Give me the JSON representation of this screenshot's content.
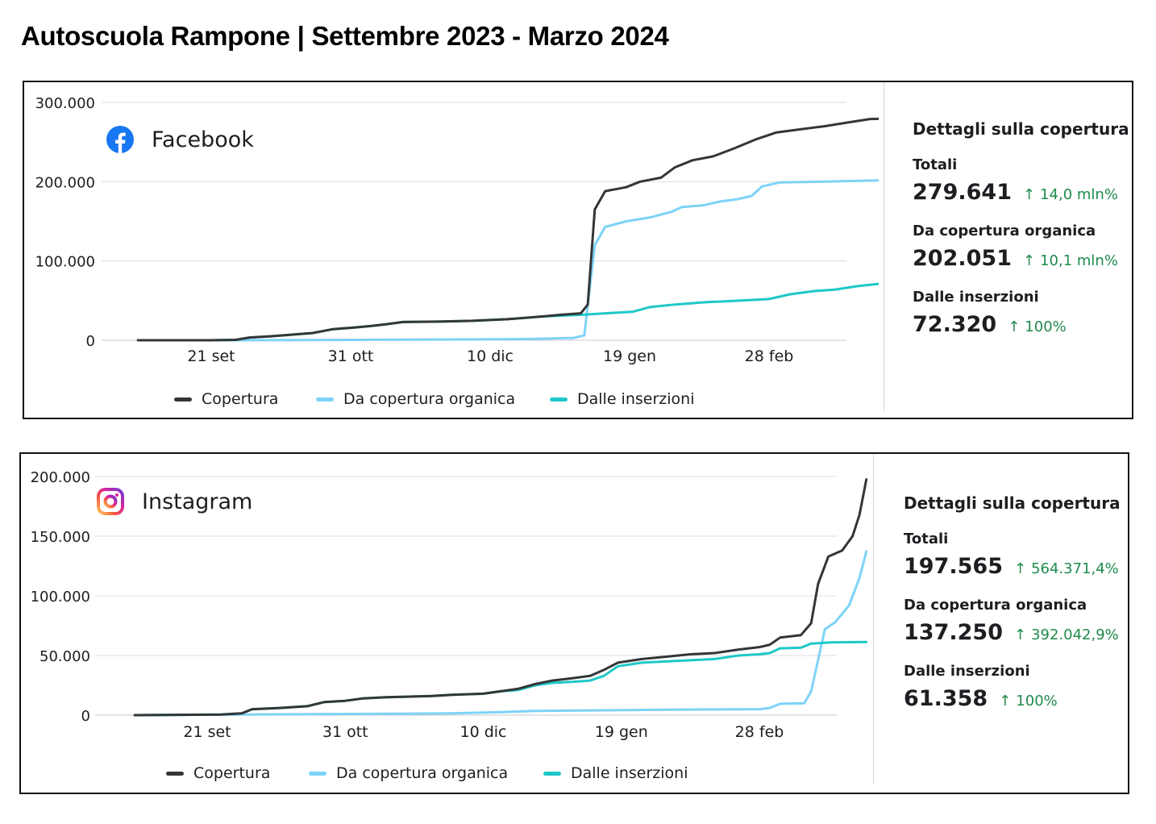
{
  "title": "Autoscuola Rampone | Settembre 2023 - Marzo 2024",
  "colors": {
    "copertura": "#333638",
    "organica": "#7dd3f7",
    "inserzioni": "#1fc8c8",
    "positive": "#1f8a4c",
    "gridline": "#dadde1",
    "facebook_brand": "#1877f2"
  },
  "legend": [
    "Copertura",
    "Da copertura organica",
    "Dalle inserzioni"
  ],
  "panels": {
    "facebook": {
      "platform": "Facebook",
      "icon": "facebook-icon",
      "details": {
        "title": "Dettagli sulla copertura",
        "items": [
          {
            "label": "Totali",
            "value": "279.641",
            "change": "14,0 mln%"
          },
          {
            "label": "Da copertura organica",
            "value": "202.051",
            "change": "10,1 mln%"
          },
          {
            "label": "Dalle inserzioni",
            "value": "72.320",
            "change": "100%"
          }
        ]
      }
    },
    "instagram": {
      "platform": "Instagram",
      "icon": "instagram-icon",
      "details": {
        "title": "Dettagli sulla copertura",
        "items": [
          {
            "label": "Totali",
            "value": "197.565",
            "change": "564.371,4%"
          },
          {
            "label": "Da copertura organica",
            "value": "137.250",
            "change": "392.042,9%"
          },
          {
            "label": "Dalle inserzioni",
            "value": "61.358",
            "change": "100%"
          }
        ]
      }
    }
  },
  "chart_data": [
    {
      "type": "line",
      "platform": "Facebook",
      "x_tick_labels": [
        "21 set",
        "31 ott",
        "10 dic",
        "19 gen",
        "28 feb"
      ],
      "y_tick_labels": [
        "0",
        "100.000",
        "200.000",
        "300.000"
      ],
      "ylim": [
        0,
        300000
      ],
      "grid": true,
      "legend_position": "bottom",
      "series": [
        {
          "name": "Copertura",
          "points": [
            [
              "2023-08-31",
              0
            ],
            [
              "2023-09-21",
              0
            ],
            [
              "2023-09-28",
              500
            ],
            [
              "2023-10-02",
              3500
            ],
            [
              "2023-10-08",
              5000
            ],
            [
              "2023-10-14",
              7000
            ],
            [
              "2023-10-20",
              9000
            ],
            [
              "2023-10-26",
              14000
            ],
            [
              "2023-11-01",
              16000
            ],
            [
              "2023-11-06",
              18000
            ],
            [
              "2023-11-10",
              20000
            ],
            [
              "2023-11-15",
              23000
            ],
            [
              "2023-11-25",
              23500
            ],
            [
              "2023-12-05",
              24500
            ],
            [
              "2023-12-15",
              26500
            ],
            [
              "2023-12-25",
              30000
            ],
            [
              "2023-12-30",
              32000
            ],
            [
              "2024-01-05",
              34000
            ],
            [
              "2024-01-07",
              45000
            ],
            [
              "2024-01-09",
              165000
            ],
            [
              "2024-01-12",
              188000
            ],
            [
              "2024-01-18",
              193000
            ],
            [
              "2024-01-22",
              200000
            ],
            [
              "2024-01-28",
              205000
            ],
            [
              "2024-02-01",
              218000
            ],
            [
              "2024-02-06",
              227000
            ],
            [
              "2024-02-12",
              232000
            ],
            [
              "2024-02-18",
              242000
            ],
            [
              "2024-02-24",
              253000
            ],
            [
              "2024-03-01",
              262000
            ],
            [
              "2024-03-08",
              266000
            ],
            [
              "2024-03-15",
              270000
            ],
            [
              "2024-03-22",
              275000
            ],
            [
              "2024-03-28",
              279000
            ],
            [
              "2024-04-04",
              279641
            ]
          ]
        },
        {
          "name": "Da copertura organica",
          "points": [
            [
              "2023-08-31",
              0
            ],
            [
              "2023-10-01",
              0
            ],
            [
              "2023-11-01",
              500
            ],
            [
              "2023-12-01",
              1000
            ],
            [
              "2023-12-20",
              1500
            ],
            [
              "2024-01-03",
              3000
            ],
            [
              "2024-01-06",
              6000
            ],
            [
              "2024-01-09",
              120000
            ],
            [
              "2024-01-12",
              143000
            ],
            [
              "2024-01-18",
              150000
            ],
            [
              "2024-01-25",
              155000
            ],
            [
              "2024-01-31",
              162000
            ],
            [
              "2024-02-03",
              168000
            ],
            [
              "2024-02-09",
              170000
            ],
            [
              "2024-02-14",
              175000
            ],
            [
              "2024-02-19",
              178000
            ],
            [
              "2024-02-23",
              182000
            ],
            [
              "2024-02-26",
              194000
            ],
            [
              "2024-03-02",
              199000
            ],
            [
              "2024-03-15",
              200000
            ],
            [
              "2024-04-04",
              202051
            ]
          ]
        },
        {
          "name": "Dalle inserzioni",
          "points": [
            [
              "2023-08-31",
              0
            ],
            [
              "2023-09-21",
              0
            ],
            [
              "2023-09-28",
              500
            ],
            [
              "2023-10-02",
              3500
            ],
            [
              "2023-10-08",
              5000
            ],
            [
              "2023-10-14",
              7000
            ],
            [
              "2023-10-20",
              9000
            ],
            [
              "2023-10-26",
              14000
            ],
            [
              "2023-11-01",
              16000
            ],
            [
              "2023-11-06",
              18000
            ],
            [
              "2023-11-10",
              20000
            ],
            [
              "2023-11-15",
              23000
            ],
            [
              "2023-11-25",
              23500
            ],
            [
              "2023-12-05",
              24500
            ],
            [
              "2023-12-15",
              26500
            ],
            [
              "2023-12-25",
              30000
            ],
            [
              "2024-01-05",
              32000
            ],
            [
              "2024-01-12",
              34000
            ],
            [
              "2024-01-20",
              36000
            ],
            [
              "2024-01-25",
              42000
            ],
            [
              "2024-02-01",
              45000
            ],
            [
              "2024-02-10",
              48000
            ],
            [
              "2024-02-20",
              50000
            ],
            [
              "2024-02-28",
              52000
            ],
            [
              "2024-03-05",
              58000
            ],
            [
              "2024-03-12",
              62000
            ],
            [
              "2024-03-18",
              64000
            ],
            [
              "2024-03-24",
              68000
            ],
            [
              "2024-03-30",
              71000
            ],
            [
              "2024-04-04",
              72320
            ]
          ]
        }
      ]
    },
    {
      "type": "line",
      "platform": "Instagram",
      "x_tick_labels": [
        "21 set",
        "31 ott",
        "10 dic",
        "19 gen",
        "28 feb"
      ],
      "y_tick_labels": [
        "0",
        "50.000",
        "100.000",
        "150.000",
        "200.000"
      ],
      "ylim": [
        0,
        200000
      ],
      "grid": true,
      "legend_position": "bottom",
      "series": [
        {
          "name": "Copertura",
          "points": [
            [
              "2023-08-31",
              0
            ],
            [
              "2023-09-25",
              500
            ],
            [
              "2023-10-01",
              1500
            ],
            [
              "2023-10-04",
              5000
            ],
            [
              "2023-10-12",
              6000
            ],
            [
              "2023-10-20",
              7500
            ],
            [
              "2023-10-25",
              11000
            ],
            [
              "2023-10-31",
              12000
            ],
            [
              "2023-11-05",
              14000
            ],
            [
              "2023-11-12",
              15000
            ],
            [
              "2023-11-25",
              16000
            ],
            [
              "2023-12-01",
              17000
            ],
            [
              "2023-12-10",
              18000
            ],
            [
              "2023-12-15",
              20000
            ],
            [
              "2023-12-20",
              22000
            ],
            [
              "2023-12-25",
              26000
            ],
            [
              "2023-12-30",
              29000
            ],
            [
              "2024-01-05",
              31000
            ],
            [
              "2024-01-10",
              33000
            ],
            [
              "2024-01-14",
              38000
            ],
            [
              "2024-01-18",
              44000
            ],
            [
              "2024-01-25",
              47000
            ],
            [
              "2024-02-01",
              49000
            ],
            [
              "2024-02-08",
              51000
            ],
            [
              "2024-02-15",
              52000
            ],
            [
              "2024-02-22",
              55000
            ],
            [
              "2024-02-28",
              57000
            ],
            [
              "2024-03-02",
              59000
            ],
            [
              "2024-03-05",
              65000
            ],
            [
              "2024-03-11",
              67000
            ],
            [
              "2024-03-14",
              77000
            ],
            [
              "2024-03-16",
              110000
            ],
            [
              "2024-03-19",
              133000
            ],
            [
              "2024-03-23",
              138000
            ],
            [
              "2024-03-26",
              150000
            ],
            [
              "2024-03-28",
              168000
            ],
            [
              "2024-03-30",
              197565
            ]
          ]
        },
        {
          "name": "Da copertura organica",
          "points": [
            [
              "2023-08-31",
              0
            ],
            [
              "2023-10-01",
              500
            ],
            [
              "2023-11-01",
              1000
            ],
            [
              "2023-12-01",
              1500
            ],
            [
              "2023-12-15",
              2500
            ],
            [
              "2023-12-25",
              3500
            ],
            [
              "2024-01-10",
              4000
            ],
            [
              "2024-02-01",
              4500
            ],
            [
              "2024-02-28",
              5000
            ],
            [
              "2024-03-02",
              6000
            ],
            [
              "2024-03-05",
              9500
            ],
            [
              "2024-03-12",
              10000
            ],
            [
              "2024-03-14",
              20000
            ],
            [
              "2024-03-18",
              72000
            ],
            [
              "2024-03-21",
              78000
            ],
            [
              "2024-03-25",
              92000
            ],
            [
              "2024-03-28",
              115000
            ],
            [
              "2024-03-30",
              137250
            ]
          ]
        },
        {
          "name": "Dalle inserzioni",
          "points": [
            [
              "2023-08-31",
              0
            ],
            [
              "2023-09-25",
              500
            ],
            [
              "2023-10-01",
              1500
            ],
            [
              "2023-10-04",
              5000
            ],
            [
              "2023-10-12",
              6000
            ],
            [
              "2023-10-20",
              7500
            ],
            [
              "2023-10-25",
              11000
            ],
            [
              "2023-10-31",
              12000
            ],
            [
              "2023-11-05",
              14000
            ],
            [
              "2023-11-12",
              15000
            ],
            [
              "2023-11-25",
              16000
            ],
            [
              "2023-12-01",
              17000
            ],
            [
              "2023-12-10",
              18000
            ],
            [
              "2023-12-15",
              20000
            ],
            [
              "2023-12-20",
              21000
            ],
            [
              "2023-12-25",
              25000
            ],
            [
              "2023-12-30",
              27000
            ],
            [
              "2024-01-05",
              28000
            ],
            [
              "2024-01-10",
              29000
            ],
            [
              "2024-01-14",
              33000
            ],
            [
              "2024-01-18",
              41000
            ],
            [
              "2024-01-25",
              44000
            ],
            [
              "2024-02-01",
              45000
            ],
            [
              "2024-02-08",
              46000
            ],
            [
              "2024-02-15",
              47000
            ],
            [
              "2024-02-22",
              50000
            ],
            [
              "2024-02-28",
              51000
            ],
            [
              "2024-03-02",
              52000
            ],
            [
              "2024-03-05",
              56000
            ],
            [
              "2024-03-11",
              56500
            ],
            [
              "2024-03-14",
              60000
            ],
            [
              "2024-03-20",
              61000
            ],
            [
              "2024-03-30",
              61358
            ]
          ]
        }
      ]
    }
  ]
}
